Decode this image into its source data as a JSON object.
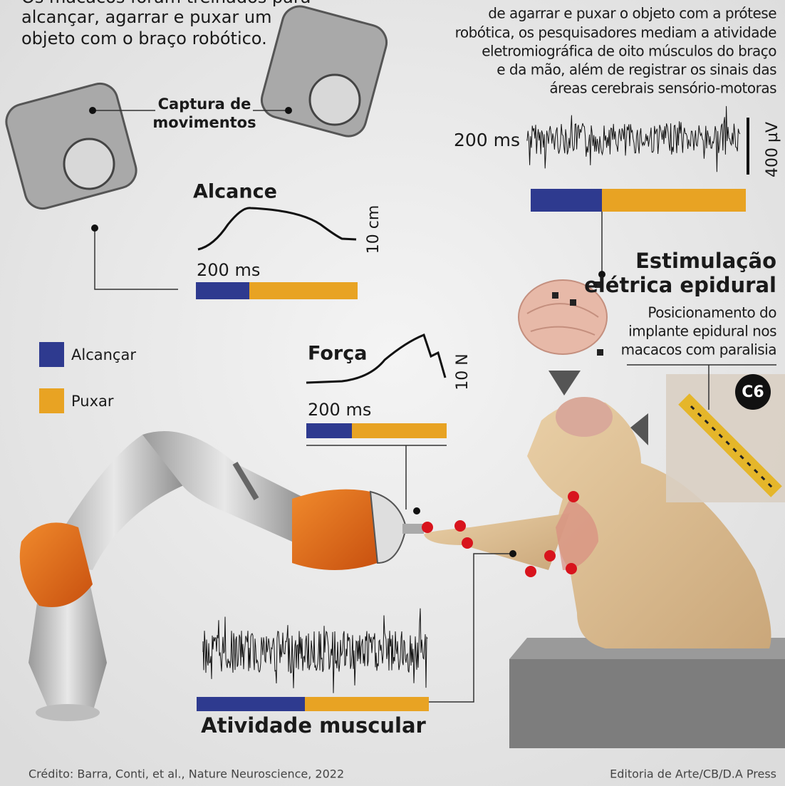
{
  "intro": {
    "lines": [
      "Os macacos foram treinados para",
      "alcançar, agarrar e puxar um",
      "objeto com o braço robótico."
    ]
  },
  "description": {
    "lines": [
      "de agarrar e puxar o objeto com a prótese",
      "robótica, os pesquisadores mediam a atividade",
      "eletromiográfica de oito músculos do braço",
      "e da mão, além de registrar os sinais das",
      "áreas cerebrais sensório-motoras"
    ]
  },
  "motion_capture": {
    "label_lines": [
      "Captura de",
      "movimentos"
    ]
  },
  "emg_panel": {
    "time_scale": "200 ms",
    "amplitude_scale": "400 µV"
  },
  "reach_panel": {
    "title": "Alcance",
    "scale": "10 cm",
    "time_scale": "200 ms"
  },
  "force_panel": {
    "title": "Força",
    "scale": "10 N",
    "time_scale": "200 ms"
  },
  "stimulation": {
    "title_lines": [
      "Estimulação",
      "elétrica epidural"
    ],
    "text_lines": [
      "Posicionamento do",
      "implante epidural nos",
      "macacos com paralisia"
    ],
    "vertebra_label": "C6"
  },
  "legend": {
    "items": [
      {
        "label": "Alcançar",
        "color": "#2e3a8f"
      },
      {
        "label": "Puxar",
        "color": "#e8a323"
      }
    ]
  },
  "muscle_activity": {
    "title": "Atividade muscular"
  },
  "footer": {
    "credit": "Crédito: Barra, Conti, et al., Nature Neuroscience, 2022",
    "source": "Editoria de Arte/CB/D.A Press"
  }
}
